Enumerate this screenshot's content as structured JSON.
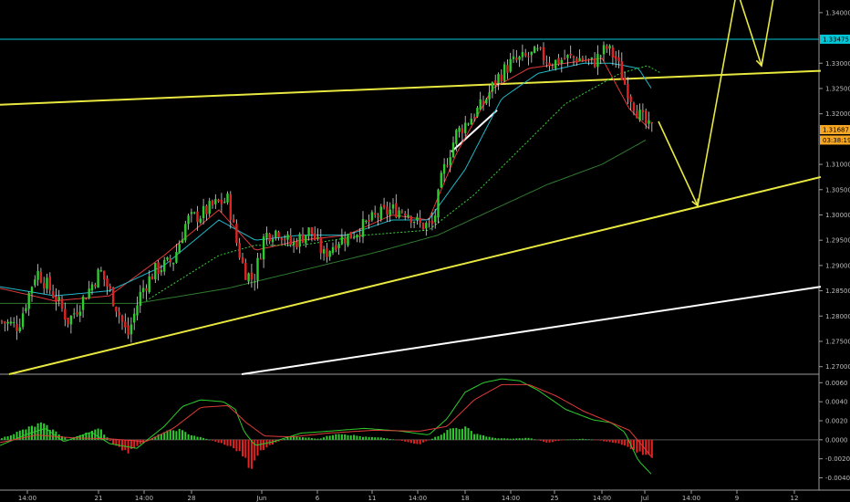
{
  "chart_data": [
    {
      "type": "candlestick",
      "title": "",
      "price_axis": {
        "ticks": [
          "1.34000",
          "1.33000",
          "1.32500",
          "1.32000",
          "1.31000",
          "1.30500",
          "1.30000",
          "1.29500",
          "1.29000",
          "1.28500",
          "1.28000",
          "1.27500",
          "1.27000"
        ],
        "ylim": [
          1.2685,
          1.3425
        ]
      },
      "time_axis": {
        "ticks": [
          "14:00",
          "21",
          "14:00",
          "28",
          "Jun",
          "6",
          "11",
          "14:00",
          "18",
          "14:00",
          "25",
          "14:00",
          "Jul",
          "14:00",
          "9",
          "12"
        ]
      },
      "tags": [
        {
          "label": "1.33475",
          "value": 1.33475,
          "color": "#00c8d8"
        },
        {
          "label": "1.31687",
          "value": 1.31687,
          "color": "#f5a623"
        },
        {
          "label": "03:38:19",
          "value": 1.3148,
          "color": "#f5a623"
        }
      ],
      "horizontal_levels": [
        1.33475
      ],
      "trendlines": [
        {
          "color": "#e8e840",
          "from": [
            0,
            1.3218
          ],
          "to": [
            900,
            1.3285
          ]
        },
        {
          "color": "#e8e840",
          "from": [
            10,
            1.2685
          ],
          "to": [
            900,
            1.3075
          ]
        },
        {
          "color": "#ffffff",
          "from": [
            265,
            1.2685
          ],
          "to": [
            900,
            1.2858
          ]
        },
        {
          "color": "#ffffff",
          "from": [
            495,
            1.3125
          ],
          "to": [
            545,
            1.3207
          ]
        }
      ],
      "projection_path": {
        "color": "#e8e840",
        "points": [
          [
            722,
            1.3185
          ],
          [
            765,
            1.3018
          ],
          [
            808,
            1.3445
          ],
          [
            835,
            1.3295
          ],
          [
            855,
            1.35
          ]
        ]
      },
      "candles_anchor": [
        [
          0,
          1.279
        ],
        [
          20,
          1.278
        ],
        [
          40,
          1.289
        ],
        [
          60,
          1.284
        ],
        [
          75,
          1.279
        ],
        [
          90,
          1.283
        ],
        [
          110,
          1.289
        ],
        [
          125,
          1.283
        ],
        [
          140,
          1.276
        ],
        [
          155,
          1.285
        ],
        [
          170,
          1.289
        ],
        [
          190,
          1.291
        ],
        [
          205,
          1.299
        ],
        [
          220,
          1.3
        ],
        [
          235,
          1.302
        ],
        [
          250,
          1.303
        ],
        [
          260,
          1.294
        ],
        [
          268,
          1.289
        ],
        [
          278,
          1.287
        ],
        [
          290,
          1.296
        ],
        [
          305,
          1.297
        ],
        [
          320,
          1.294
        ],
        [
          340,
          1.297
        ],
        [
          355,
          1.292
        ],
        [
          370,
          1.295
        ],
        [
          385,
          1.296
        ],
        [
          400,
          1.298
        ],
        [
          415,
          1.3
        ],
        [
          430,
          1.301
        ],
        [
          445,
          1.301
        ],
        [
          460,
          1.298
        ],
        [
          475,
          1.298
        ],
        [
          485,
          1.308
        ],
        [
          500,
          1.316
        ],
        [
          515,
          1.319
        ],
        [
          530,
          1.322
        ],
        [
          545,
          1.327
        ],
        [
          560,
          1.33
        ],
        [
          575,
          1.331
        ],
        [
          590,
          1.332
        ],
        [
          605,
          1.33
        ],
        [
          620,
          1.331
        ],
        [
          635,
          1.331
        ],
        [
          650,
          1.33
        ],
        [
          665,
          1.333
        ],
        [
          675,
          1.331
        ],
        [
          685,
          1.326
        ],
        [
          700,
          1.32
        ],
        [
          712,
          1.317
        ]
      ],
      "ma_anchor": {
        "red": [
          [
            0,
            1.2855
          ],
          [
            60,
            1.283
          ],
          [
            120,
            1.284
          ],
          [
            180,
            1.292
          ],
          [
            240,
            1.301
          ],
          [
            280,
            1.293
          ],
          [
            330,
            1.295
          ],
          [
            380,
            1.296
          ],
          [
            430,
            1.3
          ],
          [
            470,
            1.299
          ],
          [
            500,
            1.312
          ],
          [
            540,
            1.325
          ],
          [
            580,
            1.329
          ],
          [
            620,
            1.33
          ],
          [
            660,
            1.331
          ],
          [
            690,
            1.321
          ],
          [
            712,
            1.317
          ]
        ],
        "cyan": [
          [
            0,
            1.2858
          ],
          [
            60,
            1.284
          ],
          [
            120,
            1.285
          ],
          [
            180,
            1.29
          ],
          [
            240,
            1.299
          ],
          [
            280,
            1.295
          ],
          [
            330,
            1.296
          ],
          [
            380,
            1.296
          ],
          [
            430,
            1.299
          ],
          [
            470,
            1.299
          ],
          [
            510,
            1.309
          ],
          [
            550,
            1.323
          ],
          [
            590,
            1.328
          ],
          [
            640,
            1.33
          ],
          [
            670,
            1.33
          ],
          [
            700,
            1.329
          ],
          [
            716,
            1.3245
          ]
        ],
        "green_dotted": [
          [
            160,
            1.283
          ],
          [
            240,
            1.292
          ],
          [
            280,
            1.294
          ],
          [
            330,
            1.294
          ],
          [
            400,
            1.296
          ],
          [
            470,
            1.297
          ],
          [
            520,
            1.304
          ],
          [
            570,
            1.313
          ],
          [
            620,
            1.322
          ],
          [
            680,
            1.328
          ],
          [
            710,
            1.3295
          ],
          [
            725,
            1.328
          ]
        ],
        "darkgreen": [
          [
            0,
            1.2825
          ],
          [
            150,
            1.2825
          ],
          [
            250,
            1.2855
          ],
          [
            330,
            1.289
          ],
          [
            410,
            1.2925
          ],
          [
            480,
            1.296
          ],
          [
            540,
            1.301
          ],
          [
            600,
            1.306
          ],
          [
            660,
            1.31
          ],
          [
            710,
            1.315
          ]
        ]
      }
    },
    {
      "type": "macd",
      "axis": {
        "ticks": [
          "0.0060",
          "0.0040",
          "0.0020",
          "0.0000",
          "-0.0020",
          "-0.0040"
        ],
        "ylim": [
          -0.0052,
          0.0067
        ]
      },
      "histogram_anchor": [
        [
          0,
          0.0001
        ],
        [
          30,
          0.0012
        ],
        [
          45,
          0.0017
        ],
        [
          60,
          0.0009
        ],
        [
          75,
          0.0
        ],
        [
          95,
          0.0008
        ],
        [
          110,
          0.0011
        ],
        [
          125,
          -0.0006
        ],
        [
          140,
          -0.0013
        ],
        [
          160,
          -0.0002
        ],
        [
          180,
          0.0008
        ],
        [
          195,
          0.0011
        ],
        [
          210,
          0.0005
        ],
        [
          230,
          0.0
        ],
        [
          250,
          -0.0006
        ],
        [
          265,
          -0.0014
        ],
        [
          275,
          -0.003
        ],
        [
          285,
          -0.0012
        ],
        [
          300,
          -0.0004
        ],
        [
          320,
          0.0004
        ],
        [
          350,
          0.0001
        ],
        [
          370,
          0.0007
        ],
        [
          400,
          0.0003
        ],
        [
          420,
          0.0002
        ],
        [
          440,
          -0.0001
        ],
        [
          460,
          -0.0005
        ],
        [
          480,
          0.0004
        ],
        [
          495,
          0.0012
        ],
        [
          510,
          0.0013
        ],
        [
          520,
          0.0007
        ],
        [
          540,
          0.0002
        ],
        [
          560,
          0.0001
        ],
        [
          580,
          0.0002
        ],
        [
          600,
          -0.0003
        ],
        [
          620,
          0.0
        ],
        [
          640,
          0.0001
        ],
        [
          660,
          -0.0001
        ],
        [
          680,
          -0.0004
        ],
        [
          695,
          -0.001
        ],
        [
          710,
          -0.0018
        ]
      ],
      "macd_anchor": [
        [
          0,
          -0.0006
        ],
        [
          30,
          0.0006
        ],
        [
          50,
          0.0012
        ],
        [
          70,
          -0.0002
        ],
        [
          100,
          0.0008
        ],
        [
          120,
          -0.0004
        ],
        [
          150,
          -0.0009
        ],
        [
          180,
          0.0014
        ],
        [
          200,
          0.0035
        ],
        [
          220,
          0.0042
        ],
        [
          245,
          0.004
        ],
        [
          258,
          0.0032
        ],
        [
          268,
          0.0008
        ],
        [
          280,
          -0.0006
        ],
        [
          300,
          -0.0002
        ],
        [
          330,
          0.0007
        ],
        [
          360,
          0.0009
        ],
        [
          400,
          0.0012
        ],
        [
          440,
          0.0009
        ],
        [
          470,
          0.0005
        ],
        [
          490,
          0.0022
        ],
        [
          510,
          0.005
        ],
        [
          530,
          0.006
        ],
        [
          550,
          0.0064
        ],
        [
          570,
          0.0062
        ],
        [
          590,
          0.0052
        ],
        [
          620,
          0.0032
        ],
        [
          650,
          0.0021
        ],
        [
          670,
          0.0018
        ],
        [
          685,
          0.0008
        ],
        [
          700,
          -0.0022
        ],
        [
          716,
          -0.0038
        ]
      ],
      "signal_anchor": [
        [
          0,
          -0.0003
        ],
        [
          40,
          0.0005
        ],
        [
          80,
          0.0002
        ],
        [
          120,
          0.0001
        ],
        [
          160,
          -0.0002
        ],
        [
          190,
          0.0012
        ],
        [
          220,
          0.0034
        ],
        [
          250,
          0.0036
        ],
        [
          270,
          0.0018
        ],
        [
          290,
          0.0004
        ],
        [
          320,
          0.0003
        ],
        [
          360,
          0.0007
        ],
        [
          410,
          0.001
        ],
        [
          460,
          0.0009
        ],
        [
          490,
          0.0014
        ],
        [
          520,
          0.0042
        ],
        [
          550,
          0.0058
        ],
        [
          580,
          0.0058
        ],
        [
          610,
          0.0046
        ],
        [
          640,
          0.003
        ],
        [
          665,
          0.002
        ],
        [
          690,
          0.001
        ],
        [
          705,
          -0.0007
        ],
        [
          716,
          -0.002
        ]
      ]
    }
  ]
}
